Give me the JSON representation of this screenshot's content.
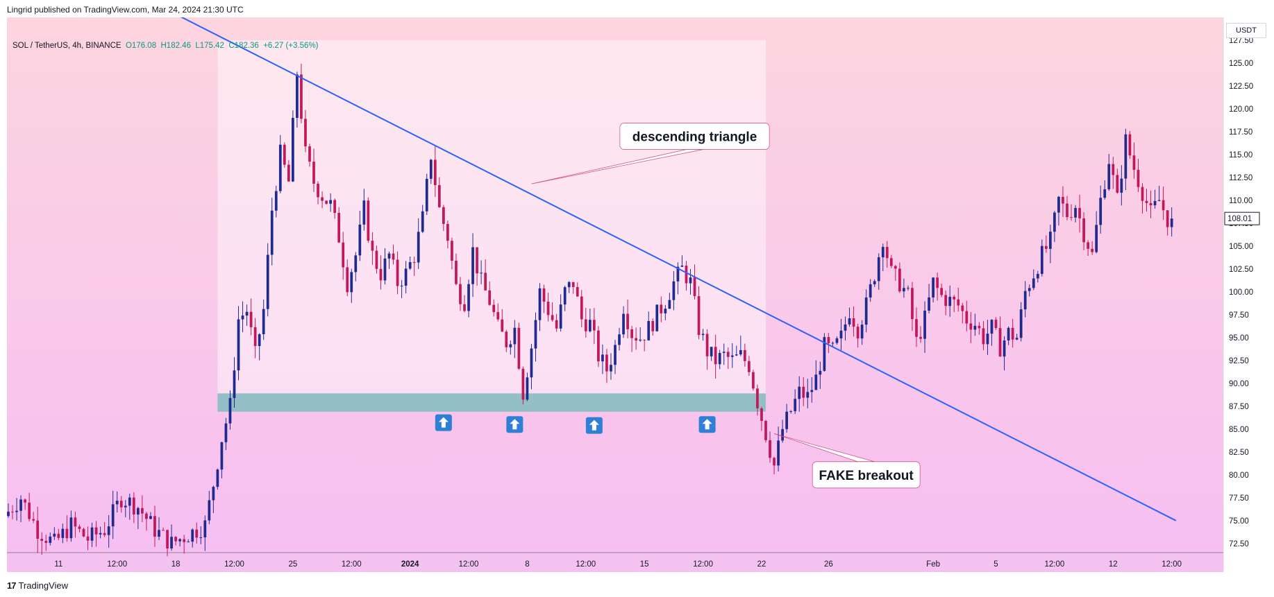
{
  "header": {
    "attribution": "Lingrid published on TradingView.com, Mar 24, 2024 21:30 UTC"
  },
  "legend": {
    "symbol": "SOL / TetherUS, 4h, BINANCE",
    "open": "O176.08",
    "high": "H182.46",
    "low": "L175.42",
    "close": "C182.36",
    "change": "+6.27 (+3.56%)"
  },
  "currency_button": "USDT",
  "footer": {
    "brand": "TradingView",
    "logo": "17"
  },
  "colors": {
    "bg_top": "#fdd5df",
    "bg_bottom": "#f6bff2",
    "up": "#1f2a8f",
    "down": "#c2185b",
    "trendline": "#2962ff",
    "support": "#8fbfc4",
    "triangle_fill": "#ffffff",
    "arrow": "#2f7fd4",
    "last_price_tag": "#131722"
  },
  "chart_data": {
    "type": "candlestick",
    "title": "SOL / TetherUS, 4h, BINANCE",
    "ylim": [
      71.5,
      130.0
    ],
    "yticks": [
      72.5,
      75.0,
      77.5,
      80.0,
      82.5,
      85.0,
      87.5,
      90.0,
      92.5,
      95.0,
      97.5,
      100.0,
      102.5,
      105.0,
      107.5,
      110.0,
      112.5,
      115.0,
      117.5,
      120.0,
      122.5,
      125.0,
      127.5
    ],
    "ytick_labels": [
      "72.50",
      "75.00",
      "77.50",
      "80.00",
      "82.50",
      "85.00",
      "87.50",
      "90.00",
      "92.50",
      "95.00",
      "97.50",
      "100.00",
      "102.50",
      "105.00",
      "107.50",
      "110.00",
      "112.50",
      "115.00",
      "117.50",
      "120.00",
      "122.50",
      "125.00",
      "127.50"
    ],
    "xlim": [
      0,
      290
    ],
    "xticks": [
      {
        "label": "11",
        "x": 12
      },
      {
        "label": "12:00",
        "x": 26
      },
      {
        "label": "18",
        "x": 40
      },
      {
        "label": "12:00",
        "x": 54
      },
      {
        "label": "25",
        "x": 68
      },
      {
        "label": "12:00",
        "x": 82
      },
      {
        "label": "2024",
        "x": 96,
        "bold": true
      },
      {
        "label": "12:00",
        "x": 110
      },
      {
        "label": "8",
        "x": 124
      },
      {
        "label": "12:00",
        "x": 138
      },
      {
        "label": "15",
        "x": 152
      },
      {
        "label": "12:00",
        "x": 166
      },
      {
        "label": "22",
        "x": 180
      },
      {
        "label": "26",
        "x": 196
      },
      {
        "label": "Feb",
        "x": 221
      },
      {
        "label": "5",
        "x": 236
      },
      {
        "label": "12:00",
        "x": 250
      },
      {
        "label": "12",
        "x": 264
      },
      {
        "label": "12:00",
        "x": 278
      }
    ],
    "last_price": 108.01,
    "last_price_label": "108.01",
    "anchors": [
      [
        0,
        75.5
      ],
      [
        4,
        77.5
      ],
      [
        8,
        74.0
      ],
      [
        12,
        72.5
      ],
      [
        16,
        74.5
      ],
      [
        20,
        73.0
      ],
      [
        24,
        74.0
      ],
      [
        28,
        77.5
      ],
      [
        32,
        76.5
      ],
      [
        36,
        74.0
      ],
      [
        40,
        72.5
      ],
      [
        44,
        73.5
      ],
      [
        48,
        74.5
      ],
      [
        50,
        79.0
      ],
      [
        52,
        84.0
      ],
      [
        54,
        87.5
      ],
      [
        56,
        97.0
      ],
      [
        58,
        98.0
      ],
      [
        60,
        93.0
      ],
      [
        62,
        98.0
      ],
      [
        64,
        109.0
      ],
      [
        66,
        115.0
      ],
      [
        68,
        112.0
      ],
      [
        70,
        124.0
      ],
      [
        72,
        115.0
      ],
      [
        74,
        112.0
      ],
      [
        76,
        110.5
      ],
      [
        78,
        109.5
      ],
      [
        80,
        106.0
      ],
      [
        82,
        101.0
      ],
      [
        84,
        104.0
      ],
      [
        86,
        109.0
      ],
      [
        88,
        104.0
      ],
      [
        90,
        102.0
      ],
      [
        92,
        104.0
      ],
      [
        94,
        101.0
      ],
      [
        96,
        102.0
      ],
      [
        98,
        104.0
      ],
      [
        100,
        108.0
      ],
      [
        102,
        115.0
      ],
      [
        104,
        109.0
      ],
      [
        106,
        106.0
      ],
      [
        108,
        100.5
      ],
      [
        110,
        99.0
      ],
      [
        112,
        104.5
      ],
      [
        114,
        101.0
      ],
      [
        116,
        99.0
      ],
      [
        118,
        96.0
      ],
      [
        120,
        94.5
      ],
      [
        122,
        96.0
      ],
      [
        124,
        89.0
      ],
      [
        126,
        94.0
      ],
      [
        128,
        100.0
      ],
      [
        130,
        98.0
      ],
      [
        132,
        96.0
      ],
      [
        134,
        100.0
      ],
      [
        136,
        101.0
      ],
      [
        138,
        97.0
      ],
      [
        140,
        96.5
      ],
      [
        142,
        93.0
      ],
      [
        144,
        91.5
      ],
      [
        146,
        94.0
      ],
      [
        148,
        98.5
      ],
      [
        150,
        95.5
      ],
      [
        152,
        95.0
      ],
      [
        154,
        96.0
      ],
      [
        156,
        97.5
      ],
      [
        158,
        99.0
      ],
      [
        160,
        101.0
      ],
      [
        162,
        102.5
      ],
      [
        164,
        101.0
      ],
      [
        166,
        96.0
      ],
      [
        168,
        93.5
      ],
      [
        170,
        92.5
      ],
      [
        172,
        93.0
      ],
      [
        174,
        92.5
      ],
      [
        176,
        93.0
      ],
      [
        178,
        92.0
      ],
      [
        180,
        88.0
      ],
      [
        182,
        84.5
      ],
      [
        184,
        81.0
      ],
      [
        186,
        85.0
      ],
      [
        188,
        87.0
      ],
      [
        190,
        89.0
      ],
      [
        192,
        88.5
      ],
      [
        194,
        90.5
      ],
      [
        196,
        94.0
      ],
      [
        198,
        93.5
      ],
      [
        200,
        95.0
      ],
      [
        202,
        98.0
      ],
      [
        204,
        96.0
      ],
      [
        206,
        98.5
      ],
      [
        208,
        102.0
      ],
      [
        210,
        106.0
      ],
      [
        212,
        102.0
      ],
      [
        214,
        101.0
      ],
      [
        216,
        99.5
      ],
      [
        218,
        94.5
      ],
      [
        220,
        97.0
      ],
      [
        222,
        101.0
      ],
      [
        224,
        99.5
      ],
      [
        226,
        99.0
      ],
      [
        228,
        98.5
      ],
      [
        230,
        97.0
      ],
      [
        232,
        96.5
      ],
      [
        234,
        95.0
      ],
      [
        236,
        96.0
      ],
      [
        238,
        94.0
      ],
      [
        240,
        95.5
      ],
      [
        242,
        95.0
      ],
      [
        244,
        100.0
      ],
      [
        246,
        102.0
      ],
      [
        248,
        104.0
      ],
      [
        250,
        105.5
      ],
      [
        252,
        110.0
      ],
      [
        254,
        108.5
      ],
      [
        256,
        109.5
      ],
      [
        258,
        106.5
      ],
      [
        260,
        104.0
      ],
      [
        262,
        110.0
      ],
      [
        264,
        114.5
      ],
      [
        266,
        110.0
      ],
      [
        268,
        116.5
      ],
      [
        270,
        113.5
      ],
      [
        272,
        111.0
      ],
      [
        274,
        108.5
      ],
      [
        276,
        110.0
      ],
      [
        278,
        108.01
      ]
    ],
    "trendline": {
      "label": "descending trendline",
      "points": [
        [
          35,
          131.5
        ],
        [
          279,
          75.0
        ]
      ]
    },
    "support_zone": {
      "label": "support",
      "x_from": 50,
      "x_to": 181,
      "y_from": 86.9,
      "y_to": 88.9
    },
    "triangle_region": {
      "x_from": 50,
      "x_to": 181,
      "y_from": 88.9,
      "y_to": 127.5
    },
    "support_touches": [
      {
        "x": 104,
        "y": 85.7
      },
      {
        "x": 121,
        "y": 85.5
      },
      {
        "x": 140,
        "y": 85.4
      },
      {
        "x": 167,
        "y": 85.5
      }
    ],
    "annotations": [
      {
        "name": "descending-triangle",
        "text": "descending triangle",
        "x": 164,
        "y": 117.0,
        "target": [
          125,
          111.8
        ]
      },
      {
        "name": "fake-breakout",
        "text": "FAKE breakout",
        "x": 205,
        "y": 80.0,
        "target": [
          183,
          84.5
        ]
      }
    ]
  }
}
